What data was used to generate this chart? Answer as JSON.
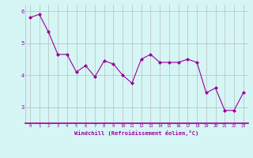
{
  "x": [
    0,
    1,
    2,
    3,
    4,
    5,
    6,
    7,
    8,
    9,
    10,
    11,
    12,
    13,
    14,
    15,
    16,
    17,
    18,
    19,
    20,
    21,
    22,
    23
  ],
  "y": [
    5.8,
    5.9,
    5.35,
    4.65,
    4.65,
    4.1,
    4.3,
    3.95,
    4.45,
    4.35,
    4.0,
    3.75,
    4.5,
    4.65,
    4.4,
    4.4,
    4.4,
    4.5,
    4.4,
    3.45,
    3.6,
    2.9,
    2.9,
    3.45
  ],
  "line_color": "#990099",
  "marker": "D",
  "marker_size": 2,
  "bg_color": "#d6f5f5",
  "grid_color": "#b0b0b0",
  "xlabel": "Windchill (Refroidissement éolien,°C)",
  "xlabel_color": "#990099",
  "tick_color": "#990099",
  "ylim": [
    2.5,
    6.2
  ],
  "yticks": [
    3,
    4,
    5,
    6
  ],
  "xlim": [
    -0.5,
    23.5
  ],
  "xticks": [
    0,
    1,
    2,
    3,
    4,
    5,
    6,
    7,
    8,
    9,
    10,
    11,
    12,
    13,
    14,
    15,
    16,
    17,
    18,
    19,
    20,
    21,
    22,
    23
  ]
}
